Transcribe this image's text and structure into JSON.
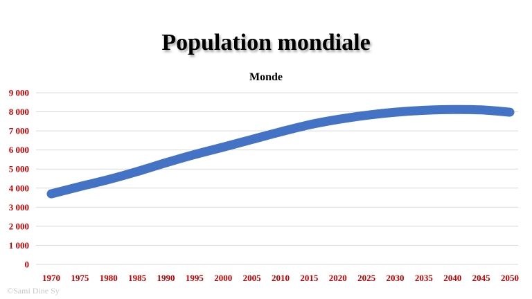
{
  "chart_data": {
    "type": "line",
    "title": "Population mondiale",
    "subtitle": "Monde",
    "xlabel": "",
    "ylabel": "",
    "x": [
      1970,
      1975,
      1980,
      1985,
      1990,
      1995,
      2000,
      2005,
      2010,
      2015,
      2020,
      2025,
      2030,
      2035,
      2040,
      2045,
      2050
    ],
    "x_tick_labels": [
      "1970",
      "1975",
      "1980",
      "1985",
      "1990",
      "1995",
      "2000",
      "2005",
      "2010",
      "2015",
      "2020",
      "2025",
      "2030",
      "2035",
      "2040",
      "2045",
      "2050"
    ],
    "y_ticks": [
      0,
      1000,
      2000,
      3000,
      4000,
      5000,
      6000,
      7000,
      8000,
      9000
    ],
    "y_tick_labels": [
      "0",
      "1 000",
      "2 000",
      "3 000",
      "4 000",
      "5 000",
      "6 000",
      "7 000",
      "8 000",
      "9 000"
    ],
    "ylim": [
      0,
      9000
    ],
    "grid": true,
    "legend": "none",
    "series": [
      {
        "values": [
          3700,
          4080,
          4450,
          4870,
          5330,
          5760,
          6150,
          6550,
          6950,
          7320,
          7600,
          7820,
          7980,
          8080,
          8120,
          8100,
          7980
        ],
        "color": "#4472c4"
      }
    ],
    "colors": {
      "tick_labels": "#c00000",
      "subtitle": "#000000",
      "grid": "#d9d9d9"
    }
  },
  "watermark": "©Sami Dine Sy"
}
